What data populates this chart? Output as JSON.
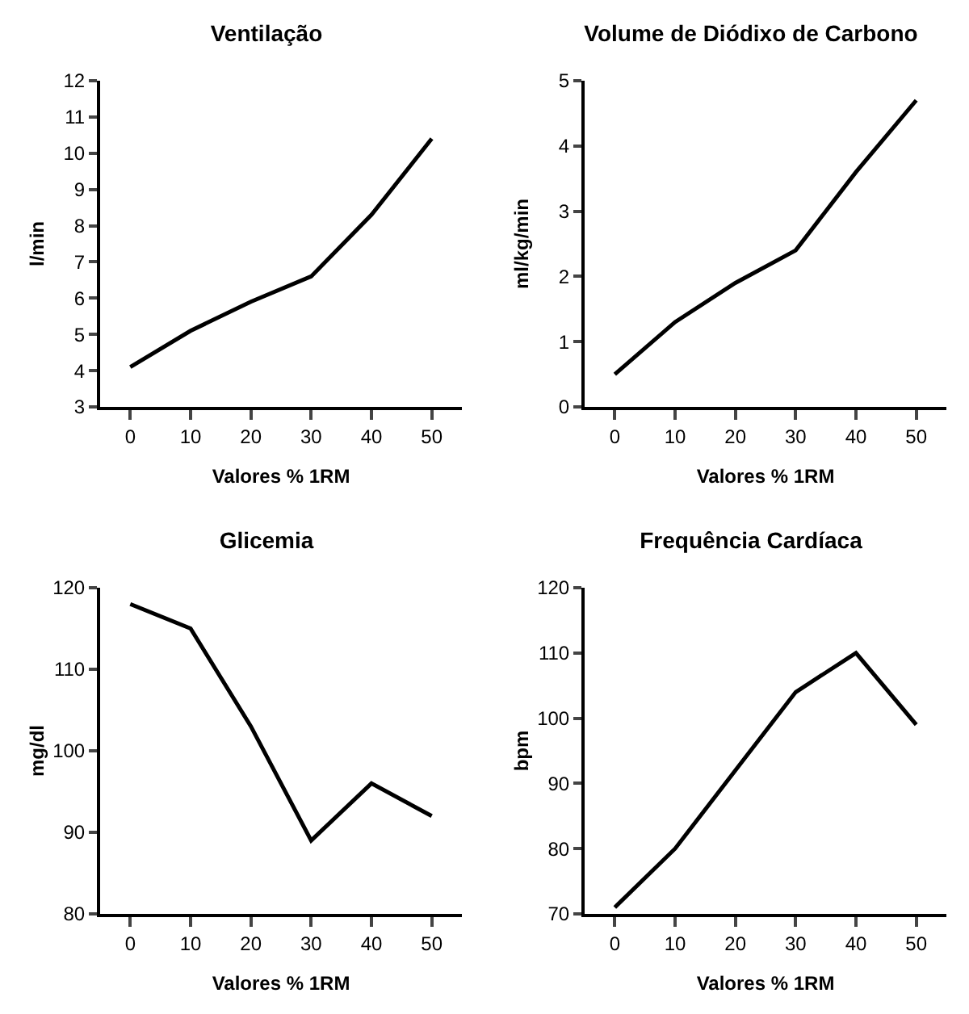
{
  "chart_data": [
    {
      "type": "line",
      "title": "Ventilação",
      "xlabel": "Valores % 1RM",
      "ylabel": "l/min",
      "categories": [
        "0",
        "10",
        "20",
        "30",
        "40",
        "50"
      ],
      "series": [
        {
          "color": "#000000",
          "values": [
            4.1,
            5.1,
            5.9,
            6.6,
            8.3,
            10.4
          ]
        }
      ],
      "ylim": [
        3,
        12
      ],
      "yticks": [
        3,
        4,
        5,
        6,
        7,
        8,
        9,
        10,
        11,
        12
      ],
      "marker": "none"
    },
    {
      "type": "line",
      "title": "Volume de Diódixo de Carbono",
      "xlabel": "Valores % 1RM",
      "ylabel": "ml/kg/min",
      "categories": [
        "0",
        "10",
        "20",
        "30",
        "40",
        "50"
      ],
      "series": [
        {
          "color": "#000000",
          "values": [
            0.5,
            1.3,
            1.9,
            2.4,
            3.6,
            4.7
          ]
        }
      ],
      "ylim": [
        0,
        5
      ],
      "yticks": [
        0,
        1,
        2,
        3,
        4,
        5
      ],
      "marker": "none"
    },
    {
      "type": "line",
      "title": "Glicemia",
      "xlabel": "Valores % 1RM",
      "ylabel": "mg/dl",
      "categories": [
        "0",
        "10",
        "20",
        "30",
        "40",
        "50"
      ],
      "series": [
        {
          "color": "#000000",
          "values": [
            118,
            115,
            103,
            89,
            96,
            92
          ]
        }
      ],
      "ylim": [
        80,
        120
      ],
      "yticks": [
        80,
        90,
        100,
        110,
        120
      ],
      "marker": "none"
    },
    {
      "type": "line",
      "title": "Frequência Cardíaca",
      "xlabel": "Valores % 1RM",
      "ylabel": "bpm",
      "categories": [
        "0",
        "10",
        "20",
        "30",
        "40",
        "50"
      ],
      "series": [
        {
          "color": "#000000",
          "values": [
            71,
            80,
            92,
            104,
            110,
            99
          ]
        }
      ],
      "ylim": [
        70,
        120
      ],
      "yticks": [
        70,
        80,
        90,
        100,
        110,
        120
      ],
      "marker": "none"
    }
  ]
}
